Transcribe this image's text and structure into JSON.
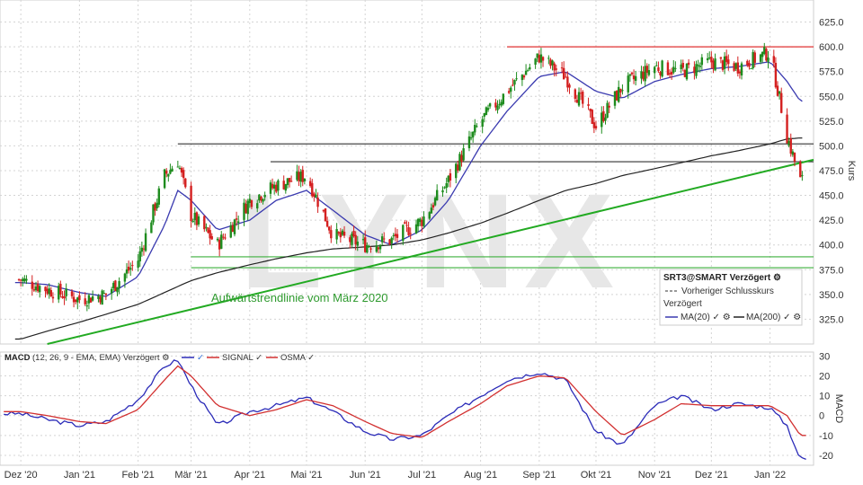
{
  "chart_data": [
    {
      "type": "candlestick",
      "panel": "price",
      "watermark": "LYNX",
      "ylabel": "Kurs",
      "ylim": [
        300,
        640
      ],
      "yticks": [
        325,
        350,
        375,
        400,
        425,
        450,
        475,
        500,
        525,
        550,
        575,
        600,
        625
      ],
      "x_dates": [
        "2020-12-01",
        "2020-12-15",
        "2021-01-01",
        "2021-01-15",
        "2021-02-01",
        "2021-02-15",
        "2021-02-22",
        "2021-03-01",
        "2021-03-15",
        "2021-04-01",
        "2021-04-15",
        "2021-05-01",
        "2021-05-15",
        "2021-06-01",
        "2021-06-15",
        "2021-07-01",
        "2021-07-15",
        "2021-08-01",
        "2021-08-15",
        "2021-09-01",
        "2021-09-15",
        "2021-10-01",
        "2021-10-15",
        "2021-11-01",
        "2021-11-15",
        "2021-12-01",
        "2021-12-15",
        "2022-01-01",
        "2022-01-10",
        "2022-01-17"
      ],
      "close": [
        365,
        355,
        345,
        350,
        385,
        470,
        485,
        430,
        400,
        445,
        460,
        470,
        410,
        400,
        405,
        425,
        465,
        525,
        555,
        590,
        570,
        520,
        560,
        580,
        575,
        585,
        580,
        595,
        510,
        465
      ],
      "series": [
        {
          "name": "MA(20)",
          "color": "#3b3bb0",
          "values": [
            362,
            360,
            352,
            348,
            368,
            420,
            455,
            445,
            415,
            425,
            445,
            455,
            435,
            410,
            400,
            415,
            445,
            500,
            535,
            570,
            575,
            555,
            548,
            565,
            572,
            578,
            580,
            585,
            565,
            545
          ]
        },
        {
          "name": "MA(200)",
          "color": "#222222",
          "values": [
            305,
            313,
            322,
            330,
            340,
            352,
            358,
            364,
            372,
            380,
            386,
            392,
            396,
            398,
            400,
            405,
            412,
            422,
            432,
            445,
            455,
            462,
            470,
            477,
            483,
            490,
            495,
            502,
            507,
            508
          ]
        }
      ],
      "annotations": {
        "resistance_high": 600,
        "resistance_mid": 502,
        "resistance_low": 484,
        "support_upper": 388,
        "support_lower": 377,
        "trendline_label": "Aufwärtstrendlinie vom März 2020"
      },
      "legend": {
        "title": "SRT3@SMART Verzögert",
        "prev_close": "Vorheriger Schlusskurs",
        "delayed": "Verzögert",
        "ma20": "MA(20)",
        "ma200": "MA(200)",
        "placement": "bottom-right"
      }
    },
    {
      "type": "line",
      "panel": "macd",
      "title": "MACD",
      "params": "(12, 26, 9 - EMA, EMA) Verzögert",
      "ylabel": "MACD",
      "ylim": [
        -25,
        32
      ],
      "yticks": [
        -20,
        -10,
        0,
        10,
        20,
        30
      ],
      "legend_signal": "SIGNAL",
      "legend_osma": "OSMA",
      "x_labels": [
        "Dez '20",
        "Jan '21",
        "Feb '21",
        "Mär '21",
        "Apr '21",
        "Mai '21",
        "Jun '21",
        "Jul '21",
        "Aug '21",
        "Sep '21",
        "Okt '21",
        "Nov '21",
        "Dez '21",
        "Jan '22"
      ],
      "series": [
        {
          "name": "MACD",
          "color": "#2b2bb8",
          "values": [
            1,
            -2,
            -5,
            -3,
            8,
            25,
            28,
            15,
            -5,
            2,
            5,
            9,
            2,
            -8,
            -12,
            -10,
            0,
            10,
            18,
            22,
            18,
            -8,
            -15,
            5,
            10,
            3,
            6,
            4,
            -5,
            -22
          ]
        },
        {
          "name": "SIGNAL",
          "color": "#d23030",
          "values": [
            2,
            0,
            -3,
            -4,
            3,
            18,
            25,
            20,
            5,
            0,
            3,
            8,
            5,
            -3,
            -9,
            -11,
            -3,
            6,
            15,
            20,
            19,
            2,
            -10,
            -2,
            6,
            5,
            5,
            5,
            0,
            -10
          ]
        }
      ]
    }
  ]
}
